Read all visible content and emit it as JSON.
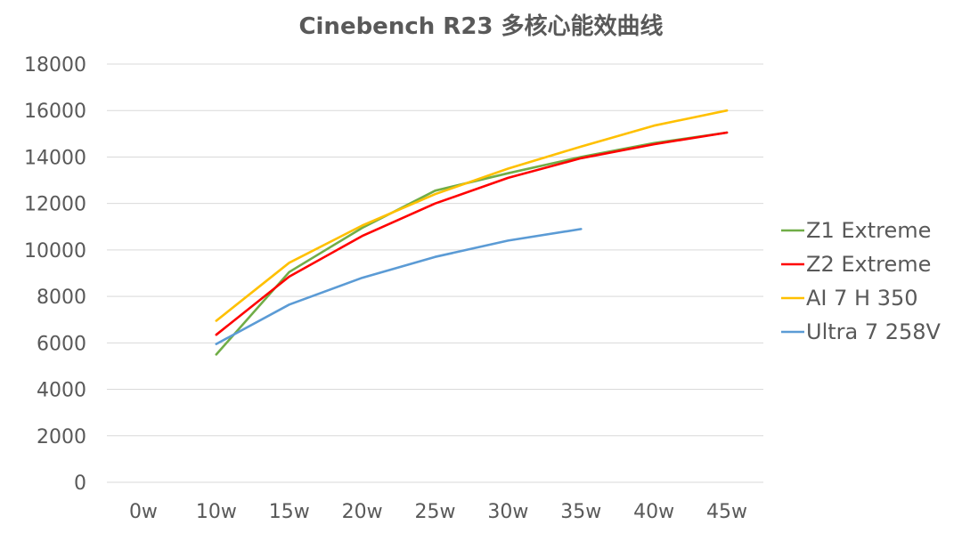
{
  "chart_data": {
    "type": "line",
    "title": "Cinebench R23 多核心能效曲线",
    "xlabel": "",
    "ylabel": "",
    "categories": [
      "0w",
      "10w",
      "15w",
      "20w",
      "25w",
      "30w",
      "35w",
      "40w",
      "45w"
    ],
    "ylim": [
      0,
      18000
    ],
    "yticks": [
      0,
      2000,
      4000,
      6000,
      8000,
      10000,
      12000,
      14000,
      16000,
      18000
    ],
    "grid": true,
    "legend_position": "right",
    "series": [
      {
        "name": "Z1 Extreme",
        "color": "#70ad47",
        "values": [
          null,
          5500,
          9050,
          10950,
          12550,
          13300,
          14000,
          14600,
          15050
        ]
      },
      {
        "name": "Z2 Extreme",
        "color": "#ff0000",
        "values": [
          null,
          6350,
          8850,
          10600,
          12000,
          13100,
          13950,
          14550,
          15050
        ]
      },
      {
        "name": "AI 7 H 350",
        "color": "#ffc000",
        "values": [
          null,
          6950,
          9450,
          11050,
          12400,
          13500,
          14450,
          15350,
          16000
        ]
      },
      {
        "name": "Ultra 7 258V",
        "color": "#5b9bd5",
        "values": [
          null,
          5950,
          7650,
          8800,
          9700,
          10400,
          10900,
          null,
          null
        ]
      }
    ]
  }
}
